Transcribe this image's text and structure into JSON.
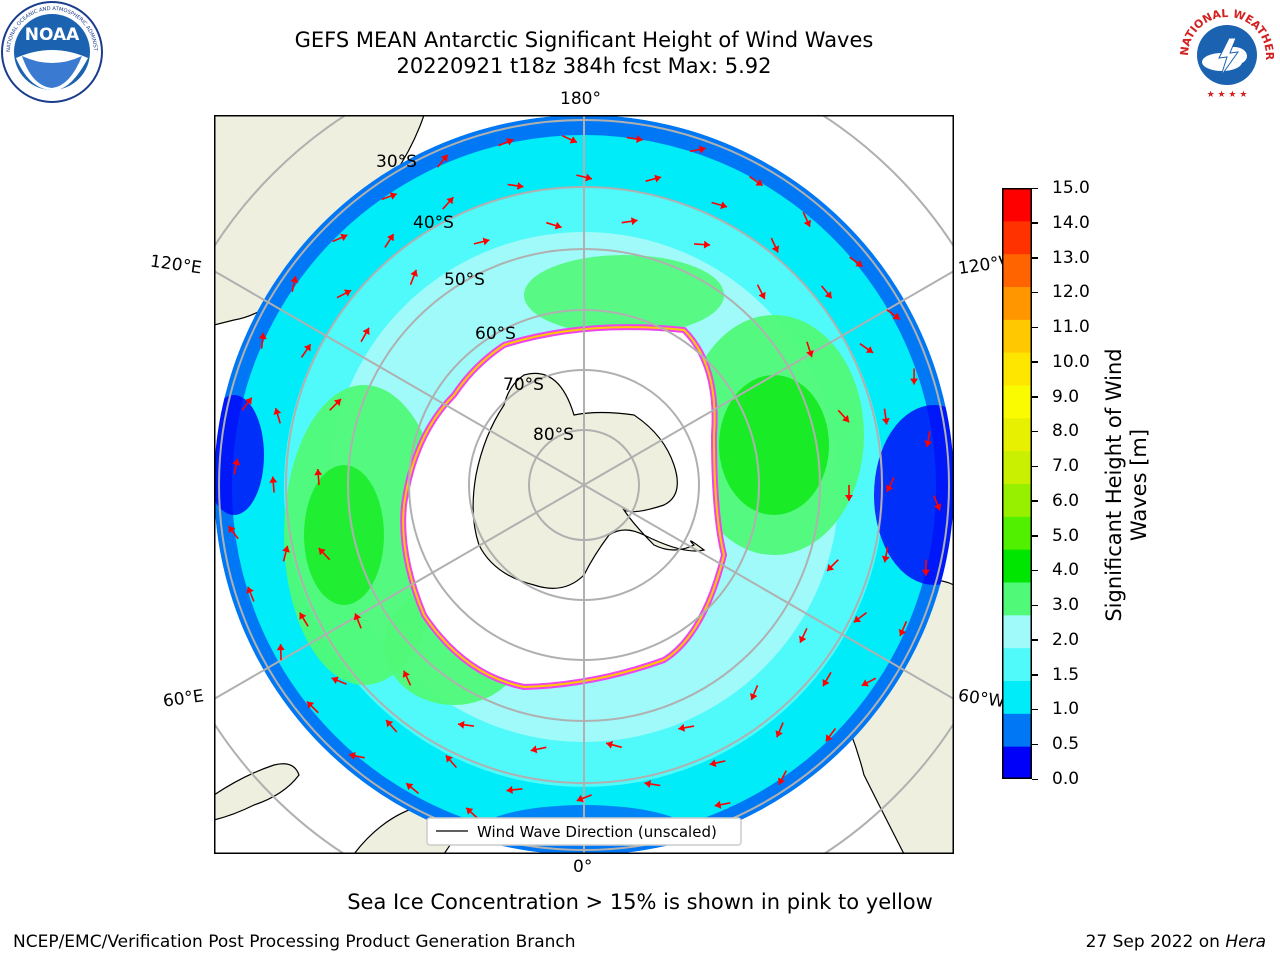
{
  "header": {
    "title_line1": "GEFS MEAN Antarctic Significant Height of Wind Waves",
    "title_line2": "20220921 t18z 384h fcst   Max: 5.92"
  },
  "logos": {
    "left": "NOAA",
    "right": "National Weather Service"
  },
  "map": {
    "projection": "south polar stereographic",
    "meridian_labels": {
      "top": "180°",
      "upper_left": "120°E",
      "upper_right": "120°W",
      "lower_left": "60°E",
      "lower_right": "60°W",
      "bottom": "0°"
    },
    "latitude_labels": [
      "30°S",
      "40°S",
      "50°S",
      "60°S",
      "70°S",
      "80°S"
    ],
    "legend_label": "Wind Wave Direction (unscaled)",
    "colors": {
      "land": "#efefdf",
      "arrow": "#ff0000",
      "gridlines": "#b0b0b0"
    }
  },
  "colorbar": {
    "title_line1": "Significant Height of Wind",
    "title_line2": "Waves [m]",
    "ticks": [
      "15.0",
      "14.0",
      "13.0",
      "12.0",
      "11.0",
      "10.0",
      "9.0",
      "8.0",
      "7.0",
      "6.0",
      "5.0",
      "4.0",
      "3.0",
      "2.0",
      "1.5",
      "1.0",
      "0.5",
      "0.0"
    ],
    "band_colors_bottom_to_top": [
      "#0000fa",
      "#0078f6",
      "#00ecf8",
      "#50fafa",
      "#a0fafa",
      "#50fa78",
      "#00e600",
      "#50f000",
      "#96f000",
      "#c8f000",
      "#e6f000",
      "#fafa00",
      "#ffe600",
      "#ffc800",
      "#ff9600",
      "#ff6400",
      "#ff3200",
      "#ff0000"
    ]
  },
  "footer": {
    "note": "Sea Ice Concentration > 15% is shown in pink to yellow",
    "left": "NCEP/EMC/Verification Post Processing Product Generation Branch",
    "right_date": "27 Sep 2022 on ",
    "right_host": "Hera"
  }
}
